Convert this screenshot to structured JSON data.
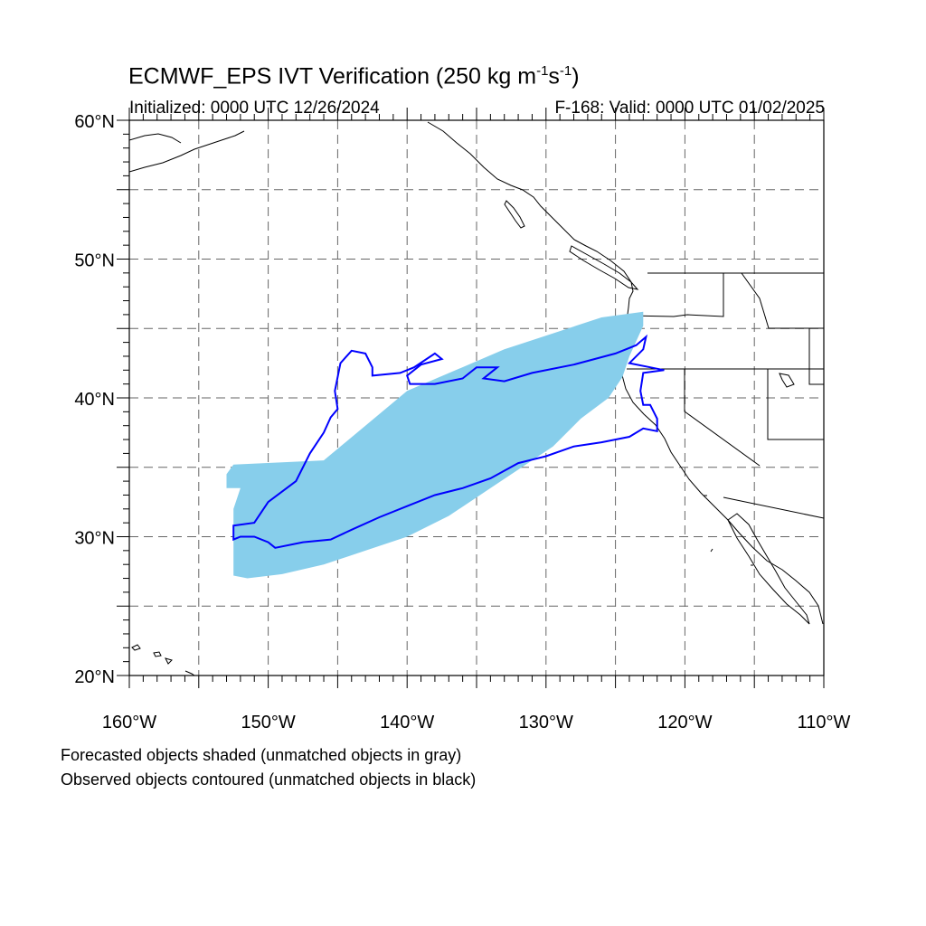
{
  "title": {
    "main": "ECMWF_EPS IVT Verification (250 kg m",
    "exp1": "-1",
    "mid": "s",
    "exp2": "-1",
    "end": ")"
  },
  "subtitle": {
    "initialized": "Initialized: 0000 UTC 12/26/2024",
    "valid": "F-168: Valid: 0000 UTC 01/02/2025"
  },
  "map": {
    "lon_range": [
      -160,
      -110
    ],
    "lat_range": [
      20,
      60
    ],
    "lon_ticks": [
      {
        "value": -160,
        "label": "160°W"
      },
      {
        "value": -150,
        "label": "150°W"
      },
      {
        "value": -140,
        "label": "140°W"
      },
      {
        "value": -130,
        "label": "130°W"
      },
      {
        "value": -120,
        "label": "120°W"
      },
      {
        "value": -110,
        "label": "110°W"
      }
    ],
    "lat_ticks": [
      {
        "value": 60,
        "label": "60°N"
      },
      {
        "value": 50,
        "label": "50°N"
      },
      {
        "value": 40,
        "label": "40°N"
      },
      {
        "value": 30,
        "label": "30°N"
      },
      {
        "value": 20,
        "label": "20°N"
      }
    ],
    "grid_spacing_deg": 5,
    "grid_style": "dashed gray",
    "colors": {
      "forecast_shade": "#87ceeb",
      "observed_contour": "#0000ff",
      "coastline": "#000000",
      "grid": "#666666"
    }
  },
  "objects": {
    "forecast_shaded": {
      "color": "#87ceeb",
      "outline_lonlat": [
        [
          -153,
          34.5
        ],
        [
          -152.5,
          35.2
        ],
        [
          -146,
          35.5
        ],
        [
          -143,
          38
        ],
        [
          -140,
          40.5
        ],
        [
          -133,
          43.5
        ],
        [
          -126,
          45.8
        ],
        [
          -123,
          46.2
        ],
        [
          -123,
          45.2
        ],
        [
          -124,
          43
        ],
        [
          -124.5,
          41.5
        ],
        [
          -125.5,
          40
        ],
        [
          -127.5,
          38.5
        ],
        [
          -129.5,
          36.5
        ],
        [
          -131,
          35.5
        ],
        [
          -134,
          33.5
        ],
        [
          -137,
          31.5
        ],
        [
          -140,
          30
        ],
        [
          -143,
          29
        ],
        [
          -146,
          28
        ],
        [
          -149,
          27.3
        ],
        [
          -151.5,
          27
        ],
        [
          -152.5,
          27.2
        ],
        [
          -152.5,
          32
        ],
        [
          -152,
          33.5
        ],
        [
          -153,
          33.5
        ]
      ]
    },
    "observed_contour": {
      "color": "#0000ff",
      "outline_lonlat": [
        [
          -152.5,
          30.8
        ],
        [
          -151,
          31
        ],
        [
          -150,
          32.5
        ],
        [
          -148,
          34
        ],
        [
          -147,
          36
        ],
        [
          -146,
          37.5
        ],
        [
          -145.5,
          38.6
        ],
        [
          -145,
          39.2
        ],
        [
          -145.2,
          40.5
        ],
        [
          -144.8,
          42.5
        ],
        [
          -144,
          43.4
        ],
        [
          -143,
          43.2
        ],
        [
          -142.5,
          42.2
        ],
        [
          -142.5,
          41.6
        ],
        [
          -140.5,
          41.8
        ],
        [
          -139.5,
          42.2
        ],
        [
          -138,
          43.2
        ],
        [
          -137.5,
          42.8
        ],
        [
          -139,
          42.4
        ],
        [
          -140,
          41.6
        ],
        [
          -139.8,
          41
        ],
        [
          -138,
          41
        ],
        [
          -136,
          41.4
        ],
        [
          -135,
          42.2
        ],
        [
          -133.5,
          42.2
        ],
        [
          -134.5,
          41.4
        ],
        [
          -133,
          41.2
        ],
        [
          -131,
          41.8
        ],
        [
          -128,
          42.4
        ],
        [
          -125,
          43.2
        ],
        [
          -123.5,
          43.8
        ],
        [
          -122.8,
          44.4
        ],
        [
          -123,
          43.5
        ],
        [
          -124,
          42.5
        ],
        [
          -122.5,
          42.2
        ],
        [
          -121.5,
          42
        ],
        [
          -123,
          41.8
        ],
        [
          -123.2,
          40.5
        ],
        [
          -123,
          39.5
        ],
        [
          -122.5,
          39.5
        ],
        [
          -122,
          38.5
        ],
        [
          -122,
          37.6
        ],
        [
          -123,
          37.8
        ],
        [
          -124,
          37.2
        ],
        [
          -126,
          36.8
        ],
        [
          -128,
          36.5
        ],
        [
          -130,
          35.8
        ],
        [
          -132,
          35.3
        ],
        [
          -134,
          34.2
        ],
        [
          -136,
          33.5
        ],
        [
          -138,
          33
        ],
        [
          -140,
          32.2
        ],
        [
          -142,
          31.4
        ],
        [
          -144,
          30.5
        ],
        [
          -145.5,
          29.8
        ],
        [
          -147.5,
          29.6
        ],
        [
          -149.5,
          29.2
        ],
        [
          -150,
          29.6
        ],
        [
          -151,
          30
        ],
        [
          -152,
          30
        ],
        [
          -152.5,
          29.8
        ]
      ]
    }
  },
  "footnotes": {
    "line1": "Forecasted objects shaded (unmatched objects in gray)",
    "line2": "Observed objects contoured (unmatched objects in black)"
  }
}
